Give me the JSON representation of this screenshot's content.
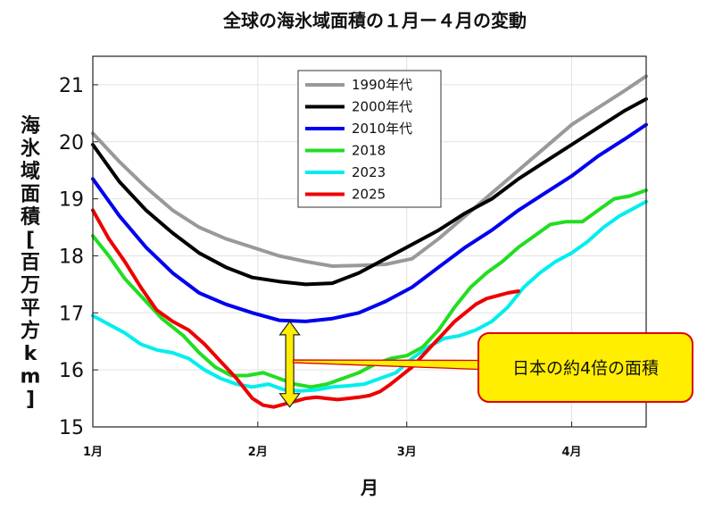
{
  "chart_data": {
    "type": "line",
    "title": "全球の海氷域面積の１月ー４月の変動",
    "xlabel": "月",
    "ylabel": "海氷域面積[百万平方km]",
    "xlim": [
      0,
      104
    ],
    "ylim": [
      15,
      21.5
    ],
    "grid": true,
    "legend_position": "top-center",
    "x_ticks": [
      {
        "x": 0,
        "label": "1月"
      },
      {
        "x": 31,
        "label": "2月"
      },
      {
        "x": 59,
        "label": "3月"
      },
      {
        "x": 90,
        "label": "4月"
      }
    ],
    "y_ticks": [
      15,
      16,
      17,
      18,
      19,
      20,
      21
    ],
    "series": [
      {
        "name": "1990年代",
        "color": "#999999",
        "x": [
          0,
          5,
          10,
          15,
          20,
          25,
          30,
          35,
          40,
          45,
          50,
          55,
          60,
          65,
          70,
          75,
          80,
          85,
          90,
          95,
          100,
          104
        ],
        "y": [
          20.15,
          19.65,
          19.2,
          18.8,
          18.5,
          18.3,
          18.15,
          18.0,
          17.9,
          17.82,
          17.83,
          17.85,
          17.95,
          18.3,
          18.7,
          19.1,
          19.5,
          19.9,
          20.3,
          20.6,
          20.9,
          21.15
        ]
      },
      {
        "name": "2000年代",
        "color": "#000000",
        "x": [
          0,
          5,
          10,
          15,
          20,
          25,
          30,
          35,
          40,
          45,
          50,
          55,
          60,
          65,
          70,
          75,
          80,
          85,
          90,
          95,
          100,
          104
        ],
        "y": [
          19.95,
          19.3,
          18.8,
          18.4,
          18.05,
          17.8,
          17.62,
          17.55,
          17.5,
          17.52,
          17.7,
          17.95,
          18.2,
          18.45,
          18.75,
          19.0,
          19.35,
          19.65,
          19.95,
          20.25,
          20.55,
          20.75
        ]
      },
      {
        "name": "2010年代",
        "color": "#0000ee",
        "x": [
          0,
          5,
          10,
          15,
          20,
          25,
          30,
          35,
          40,
          45,
          50,
          55,
          60,
          65,
          70,
          75,
          80,
          85,
          90,
          95,
          100,
          104
        ],
        "y": [
          19.35,
          18.7,
          18.15,
          17.7,
          17.35,
          17.15,
          17.0,
          16.87,
          16.85,
          16.9,
          17.0,
          17.2,
          17.45,
          17.8,
          18.15,
          18.45,
          18.8,
          19.1,
          19.4,
          19.75,
          20.05,
          20.3
        ]
      },
      {
        "name": "2018",
        "color": "#22dd22",
        "x": [
          0,
          3,
          6,
          10,
          13,
          17,
          20,
          23,
          26,
          29,
          32,
          35,
          38,
          41,
          44,
          47,
          50,
          53,
          56,
          59,
          62,
          65,
          68,
          71,
          74,
          77,
          80,
          83,
          86,
          89,
          92,
          95,
          98,
          101,
          104
        ],
        "y": [
          18.35,
          18.0,
          17.6,
          17.2,
          16.9,
          16.6,
          16.3,
          16.05,
          15.9,
          15.9,
          15.95,
          15.85,
          15.75,
          15.7,
          15.75,
          15.85,
          15.95,
          16.1,
          16.2,
          16.25,
          16.4,
          16.7,
          17.1,
          17.45,
          17.7,
          17.9,
          18.15,
          18.35,
          18.55,
          18.6,
          18.6,
          18.8,
          19.0,
          19.05,
          19.15
        ]
      },
      {
        "name": "2023",
        "color": "#00eeee",
        "x": [
          0,
          3,
          6,
          9,
          12,
          15,
          18,
          21,
          24,
          27,
          30,
          33,
          36,
          39,
          42,
          45,
          48,
          51,
          54,
          57,
          60,
          63,
          66,
          69,
          72,
          75,
          78,
          81,
          84,
          87,
          90,
          93,
          96,
          99,
          102,
          104
        ],
        "y": [
          16.95,
          16.8,
          16.65,
          16.45,
          16.35,
          16.3,
          16.2,
          16.0,
          15.85,
          15.75,
          15.7,
          15.75,
          15.65,
          15.63,
          15.65,
          15.7,
          15.72,
          15.75,
          15.85,
          15.95,
          16.2,
          16.4,
          16.55,
          16.6,
          16.7,
          16.85,
          17.1,
          17.45,
          17.7,
          17.9,
          18.05,
          18.25,
          18.5,
          18.7,
          18.85,
          18.95
        ]
      },
      {
        "name": "2025",
        "color": "#ee0000",
        "x": [
          0,
          3,
          6,
          9,
          12,
          15,
          18,
          21,
          24,
          27,
          30,
          32,
          34,
          36,
          38,
          40,
          42,
          44,
          46,
          48,
          50,
          52,
          54,
          56,
          58,
          60,
          62,
          64,
          66,
          68,
          70,
          72,
          74,
          76,
          78,
          80
        ],
        "y": [
          18.8,
          18.3,
          17.9,
          17.45,
          17.05,
          16.85,
          16.7,
          16.45,
          16.15,
          15.85,
          15.5,
          15.38,
          15.35,
          15.4,
          15.45,
          15.5,
          15.52,
          15.5,
          15.48,
          15.5,
          15.52,
          15.55,
          15.62,
          15.75,
          15.9,
          16.05,
          16.25,
          16.45,
          16.65,
          16.85,
          17.0,
          17.15,
          17.25,
          17.3,
          17.35,
          17.38
        ]
      }
    ],
    "annotation": {
      "text": "日本の約4倍の面積",
      "arrow_x": 37,
      "arrow_y_top": 16.85,
      "arrow_y_bottom": 15.35,
      "pointer_y": 16.15
    }
  }
}
